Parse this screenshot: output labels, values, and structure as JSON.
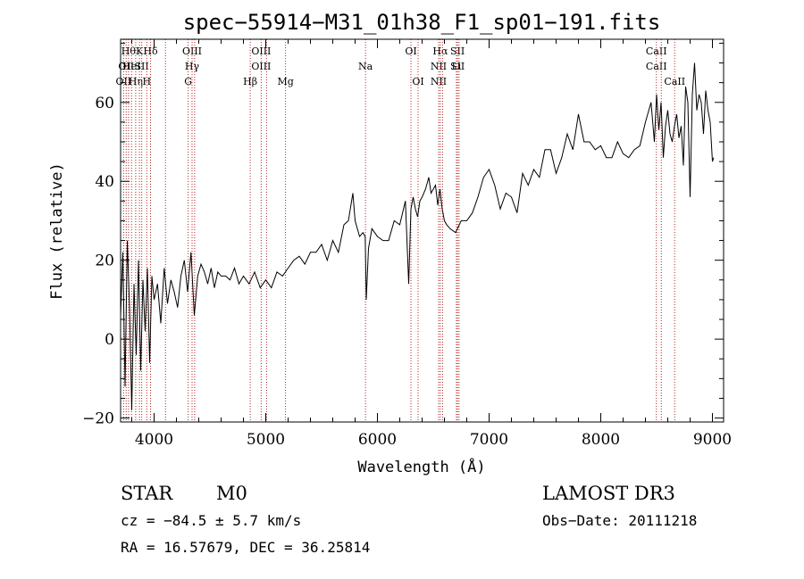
{
  "chart_data": {
    "type": "line",
    "title": "spec−55914−M31_01h38_F1_sp01−191.fits",
    "xlabel": "Wavelength (Å)",
    "ylabel": "Flux (relative)",
    "xlim": [
      3700,
      9100
    ],
    "ylim": [
      -21,
      76
    ],
    "xticks": [
      4000,
      5000,
      6000,
      7000,
      8000,
      9000
    ],
    "xtick_labels": [
      "4000",
      "5000",
      "6000",
      "7000",
      "8000",
      "9000"
    ],
    "yticks": [
      -20,
      0,
      20,
      40,
      60
    ],
    "ytick_labels": [
      "−20",
      "0",
      "20",
      "40",
      "60"
    ],
    "grid": false,
    "line_color": "#000000",
    "marker_color": "#b22222",
    "spectrum": {
      "x": [
        3700,
        3720,
        3740,
        3760,
        3780,
        3800,
        3820,
        3840,
        3860,
        3880,
        3900,
        3920,
        3940,
        3960,
        3980,
        4000,
        4030,
        4060,
        4090,
        4120,
        4150,
        4180,
        4210,
        4240,
        4270,
        4300,
        4330,
        4360,
        4390,
        4420,
        4450,
        4480,
        4510,
        4540,
        4570,
        4600,
        4640,
        4680,
        4720,
        4760,
        4800,
        4850,
        4900,
        4950,
        5000,
        5050,
        5100,
        5150,
        5200,
        5250,
        5300,
        5350,
        5400,
        5450,
        5500,
        5550,
        5600,
        5650,
        5700,
        5740,
        5780,
        5800,
        5820,
        5840,
        5870,
        5890,
        5900,
        5920,
        5950,
        6000,
        6050,
        6100,
        6150,
        6200,
        6250,
        6280,
        6300,
        6320,
        6340,
        6360,
        6380,
        6400,
        6430,
        6460,
        6480,
        6500,
        6520,
        6540,
        6560,
        6580,
        6600,
        6620,
        6650,
        6700,
        6750,
        6800,
        6850,
        6900,
        6950,
        7000,
        7050,
        7100,
        7150,
        7200,
        7250,
        7300,
        7350,
        7400,
        7450,
        7500,
        7550,
        7600,
        7650,
        7700,
        7750,
        7800,
        7850,
        7900,
        7950,
        8000,
        8050,
        8100,
        8150,
        8200,
        8250,
        8300,
        8350,
        8400,
        8450,
        8480,
        8500,
        8520,
        8540,
        8560,
        8580,
        8600,
        8620,
        8640,
        8660,
        8680,
        8700,
        8720,
        8740,
        8760,
        8780,
        8800,
        8820,
        8840,
        8860,
        8880,
        8900,
        8920,
        8940,
        8960,
        8980,
        9000,
        9010
      ],
      "y": [
        6,
        22,
        -12,
        25,
        8,
        -18,
        14,
        -4,
        20,
        -8,
        15,
        2,
        18,
        -6,
        16,
        10,
        14,
        4,
        18,
        9,
        15,
        12,
        8,
        16,
        20,
        12,
        22,
        6,
        16,
        19,
        17,
        14,
        18,
        13,
        17,
        16,
        16,
        15,
        18,
        14,
        16,
        14,
        17,
        13,
        15,
        13,
        17,
        16,
        18,
        20,
        21,
        19,
        22,
        22,
        24,
        20,
        25,
        22,
        29,
        30,
        37,
        30,
        28,
        26,
        27,
        26,
        10,
        23,
        28,
        26,
        25,
        25,
        30,
        29,
        35,
        14,
        33,
        36,
        33,
        31,
        35,
        36,
        38,
        41,
        37,
        38,
        39,
        34,
        38,
        33,
        30,
        29,
        28,
        27,
        30,
        30,
        32,
        36,
        41,
        43,
        39,
        33,
        37,
        36,
        32,
        42,
        39,
        43,
        41,
        48,
        48,
        42,
        46,
        52,
        48,
        57,
        50,
        50,
        48,
        49,
        46,
        46,
        50,
        47,
        46,
        48,
        49,
        55,
        60,
        50,
        62,
        53,
        60,
        46,
        54,
        58,
        52,
        50,
        54,
        57,
        51,
        54,
        44,
        64,
        60,
        36,
        62,
        70,
        58,
        62,
        60,
        52,
        63,
        58,
        55,
        45,
        46
      ]
    },
    "lines": [
      {
        "wl": 3727,
        "labels": [
          "OII"
        ],
        "row": 2
      },
      {
        "wl": 3750,
        "labels": [
          "OII"
        ],
        "row": 1
      },
      {
        "wl": 3771,
        "labels": [
          "Hθ"
        ],
        "row": 0
      },
      {
        "wl": 3798,
        "labels": [
          "HeI"
        ],
        "row": 1
      },
      {
        "wl": 3835,
        "labels": [
          "Hη"
        ],
        "row": 2
      },
      {
        "wl": 3869,
        "labels": [
          "K"
        ],
        "row": 0
      },
      {
        "wl": 3889,
        "labels": [
          "SII"
        ],
        "row": 1
      },
      {
        "wl": 3934,
        "labels": [
          "H"
        ],
        "row": 2
      },
      {
        "wl": 3968,
        "labels": [
          "Hδ"
        ],
        "row": 0
      },
      {
        "wl": 4102,
        "labels": [],
        "row": 0
      },
      {
        "wl": 4305,
        "labels": [
          "G"
        ],
        "row": 2
      },
      {
        "wl": 4340,
        "labels": [
          "OIII",
          "Hγ"
        ],
        "row": 0
      },
      {
        "wl": 4363,
        "labels": [],
        "row": 0
      },
      {
        "wl": 4861,
        "labels": [
          "Hβ"
        ],
        "row": 2
      },
      {
        "wl": 4959,
        "labels": [
          "OIII",
          "OIII"
        ],
        "row": 0
      },
      {
        "wl": 5007,
        "labels": [],
        "row": 0
      },
      {
        "wl": 5177,
        "labels": [
          "Mg"
        ],
        "row": 2
      },
      {
        "wl": 5893,
        "labels": [
          "Na"
        ],
        "row": 1
      },
      {
        "wl": 6300,
        "labels": [
          "OI"
        ],
        "row": 0
      },
      {
        "wl": 6364,
        "labels": [
          "OI"
        ],
        "row": 2
      },
      {
        "wl": 6548,
        "labels": [
          "NII",
          "NII"
        ],
        "row": 1
      },
      {
        "wl": 6563,
        "labels": [
          "Hα"
        ],
        "row": 0
      },
      {
        "wl": 6583,
        "labels": [],
        "row": 0
      },
      {
        "wl": 6707,
        "labels": [
          "Li"
        ],
        "row": 1
      },
      {
        "wl": 6717,
        "labels": [
          "SII",
          "SII"
        ],
        "row": 0
      },
      {
        "wl": 6731,
        "labels": [],
        "row": 0
      },
      {
        "wl": 8498,
        "labels": [
          "CaII",
          "CaII"
        ],
        "row": 0
      },
      {
        "wl": 8542,
        "labels": [],
        "row": 0
      },
      {
        "wl": 8662,
        "labels": [
          "CaII"
        ],
        "row": 2
      }
    ]
  },
  "info": {
    "class": "STAR",
    "subclass": "M0",
    "survey": "LAMOST DR3",
    "redshift": "cz = −84.5 ± 5.7 km/s",
    "obs_date": "Obs−Date: 20111218",
    "coords": "RA =  16.57679, DEC =  36.25814"
  }
}
